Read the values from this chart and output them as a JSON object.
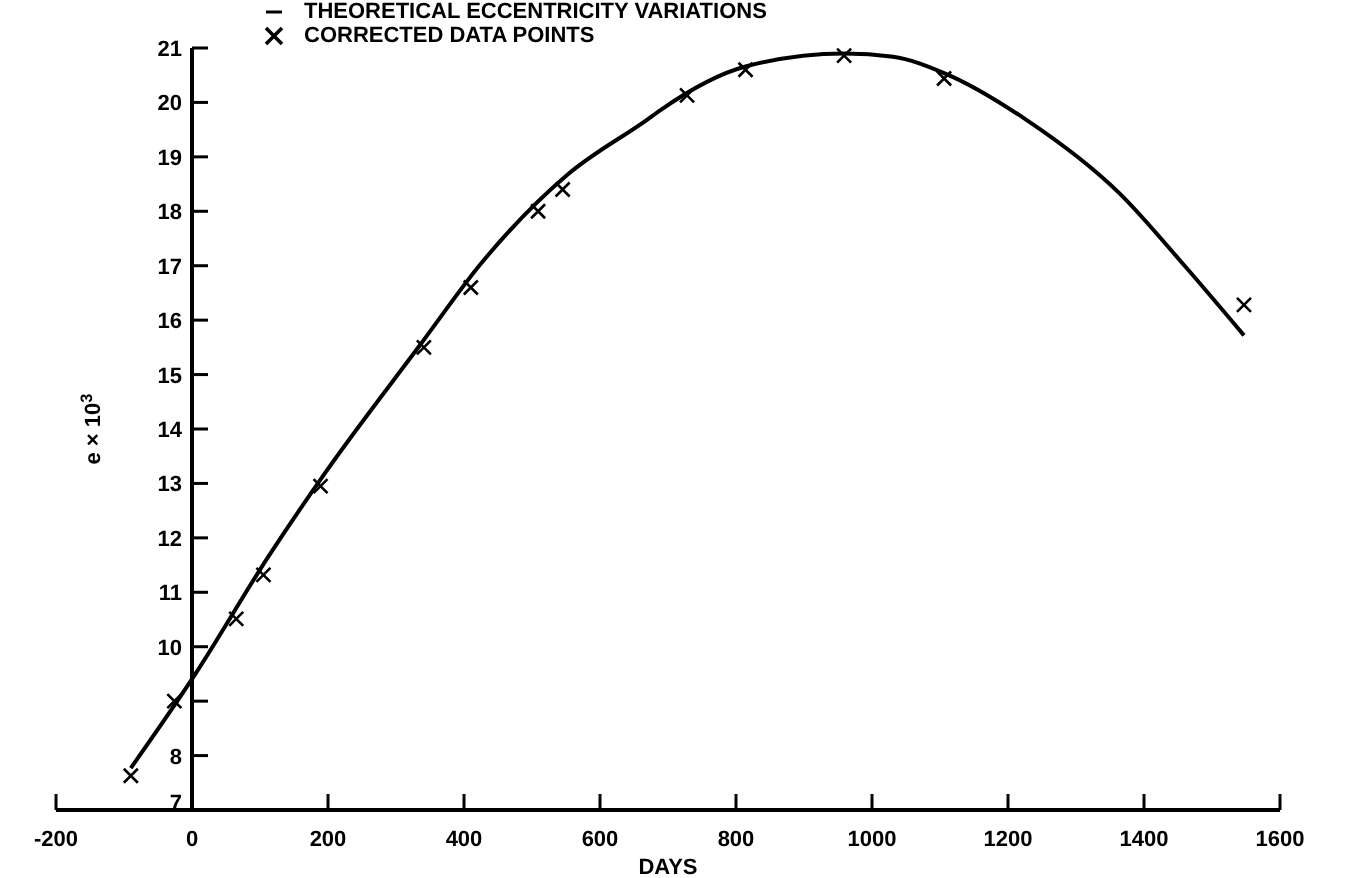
{
  "chart_data": {
    "type": "line",
    "xlabel": "DAYS",
    "ylabel": "e × 10$^{3}$",
    "xlim": [
      -200,
      1600
    ],
    "xticks": [
      -200,
      0,
      200,
      400,
      600,
      800,
      1000,
      1200,
      1400,
      1600
    ],
    "ylim": [
      7,
      21
    ],
    "yticks": [
      7,
      8,
      {
        "value": 9,
        "label": null
      },
      10,
      11,
      12,
      13,
      14,
      15,
      16,
      17,
      18,
      19,
      20,
      21
    ],
    "legend": "top",
    "grid": false,
    "series": [
      {
        "name": "THEORETICAL ECCENTRICITY VARIATIONS",
        "color": "#000000",
        "marker": "none",
        "line_style": "solid",
        "x": [
          -90,
          5,
          112,
          195,
          337,
          425,
          552,
          669,
          689,
          814,
          959,
          1031,
          1106,
          1227,
          1364,
          1461,
          1547
        ],
        "values": [
          7.77,
          9.5,
          11.65,
          13.18,
          15.57,
          17.04,
          18.67,
          19.68,
          19.86,
          20.66,
          20.9,
          20.84,
          20.54,
          19.68,
          18.33,
          16.98,
          15.72
        ]
      },
      {
        "name": "CORRECTED DATA POINTS",
        "type": "scatter",
        "color": "#000000",
        "marker": "cross",
        "x": [
          -90,
          -26,
          65,
          105,
          189,
          341,
          410,
          509,
          545,
          728,
          814,
          959,
          1106,
          1547
        ],
        "values": [
          7.63,
          9.0,
          10.51,
          11.32,
          12.95,
          15.5,
          16.6,
          18.0,
          18.4,
          20.13,
          20.6,
          20.86,
          20.44,
          16.28
        ]
      }
    ]
  }
}
